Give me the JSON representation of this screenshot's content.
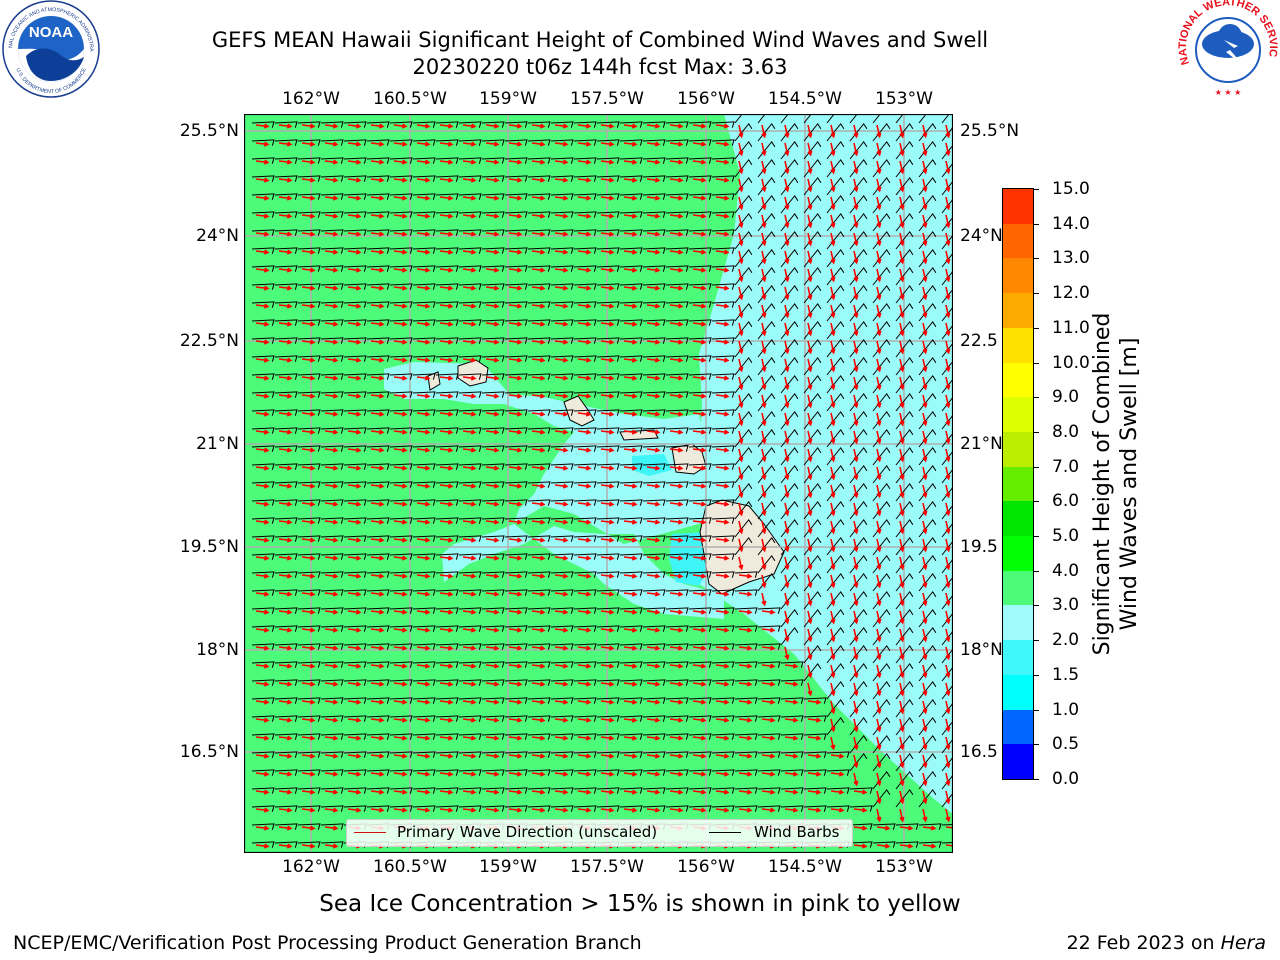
{
  "header": {
    "title_line1": "GEFS MEAN Hawaii Significant Height of Combined Wind Waves and Swell",
    "title_line2": "20230220 t06z 144h fcst   Max: 3.63"
  },
  "logos": {
    "noaa_text": "NOAA",
    "noaa_ring_top": "NATIONAL OCEANIC AND ATMOSPHERIC ADMINISTRATION",
    "noaa_ring_bottom": "U.S. DEPARTMENT OF COMMERCE",
    "nws_ring": "NATIONAL WEATHER SERVICE"
  },
  "map": {
    "lon_ticks": [
      "162°W",
      "160.5°W",
      "159°W",
      "157.5°W",
      "156°W",
      "154.5°W",
      "153°W"
    ],
    "lat_ticks": [
      "25.5°N",
      "24°N",
      "22.5°N",
      "21°N",
      "19.5°N",
      "18°N",
      "16.5°N"
    ],
    "right_lat_ticks": [
      "25.5°N",
      "24°N",
      "22.5",
      "21°N",
      "19.5",
      "18°N",
      "16.5"
    ],
    "background_wave_color": "#4dfb7a",
    "calm_wave_color": "#9bfbf8",
    "shallow_color": "#3ff5f8",
    "land_color": "#efebdc",
    "wave_arrow_color": "#ff0000",
    "wind_barb_color": "#000000"
  },
  "legend": {
    "wave_direction": "Primary Wave Direction (unscaled)",
    "wind_barbs": "Wind Barbs"
  },
  "colorbar": {
    "title_line1": "Significant Height of Combined",
    "title_line2": "Wind Waves and Swell [m]",
    "ticks": [
      "0.0",
      "0.5",
      "1.0",
      "1.5",
      "2.0",
      "3.0",
      "4.0",
      "5.0",
      "6.0",
      "7.0",
      "8.0",
      "9.0",
      "10.0",
      "11.0",
      "12.0",
      "13.0",
      "14.0",
      "15.0"
    ],
    "colors": [
      "#0000ff",
      "#0066ff",
      "#00ffff",
      "#40f8fc",
      "#9ffbfc",
      "#4dfb7a",
      "#03ff03",
      "#00e600",
      "#66ee00",
      "#bbee00",
      "#ddff00",
      "#ffff00",
      "#ffe100",
      "#ffaa00",
      "#ff8800",
      "#ff6600",
      "#ff3300",
      "#ff0000"
    ]
  },
  "caption": "Sea Ice Concentration > 15% is shown in pink to yellow",
  "footer": {
    "left": "NCEP/EMC/Verification Post Processing Product Generation Branch",
    "right_date": "22 Feb 2023 on ",
    "right_host": "Hera"
  }
}
